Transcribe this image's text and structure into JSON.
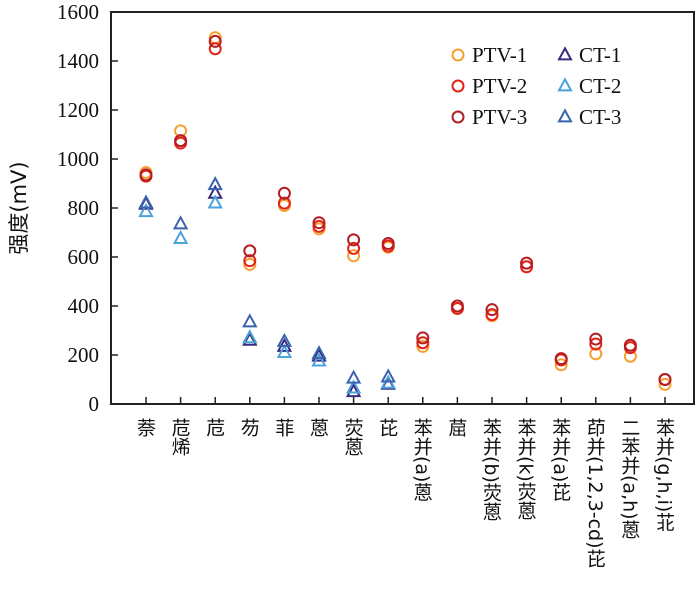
{
  "chart_data": {
    "type": "scatter",
    "title": "",
    "xlabel": "",
    "ylabel": "强度(mV)",
    "ylim": [
      0,
      1600
    ],
    "yticks": [
      0,
      200,
      400,
      600,
      800,
      1000,
      1200,
      1400,
      1600
    ],
    "grid": false,
    "legend_position": "top-right",
    "categories": [
      "萘",
      "苊烯",
      "苊",
      "芴",
      "菲",
      "蒽",
      "荧蒽",
      "芘",
      "苯并(a)蒽",
      "䓛",
      "苯并(b)荧蒽",
      "苯并(k)荧蒽",
      "苯并(a)芘",
      "茚并(1,2,3-cd)芘",
      "二苯并(a,h)蒽",
      "苯并(g,h,i)苝"
    ],
    "series": [
      {
        "name": "PTV-1",
        "marker": "circle",
        "color": "#F5A030",
        "values": [
          945,
          1115,
          1495,
          570,
          810,
          715,
          605,
          640,
          235,
          390,
          360,
          560,
          160,
          205,
          195,
          80
        ]
      },
      {
        "name": "PTV-2",
        "marker": "circle",
        "color": "#E2231A",
        "values": [
          930,
          1065,
          1450,
          585,
          820,
          725,
          635,
          645,
          250,
          390,
          365,
          560,
          180,
          245,
          230,
          100
        ]
      },
      {
        "name": "PTV-3",
        "marker": "circle",
        "color": "#B21E23",
        "values": [
          935,
          1075,
          1480,
          625,
          860,
          740,
          670,
          655,
          270,
          400,
          385,
          575,
          185,
          265,
          240,
          100
        ]
      },
      {
        "name": "CT-1",
        "marker": "triangle",
        "color": "#3B2A7E",
        "values": [
          815,
          null,
          860,
          260,
          235,
          195,
          50,
          80,
          null,
          null,
          null,
          null,
          null,
          null,
          null,
          null
        ]
      },
      {
        "name": "CT-2",
        "marker": "triangle",
        "color": "#4BA3DC",
        "values": [
          785,
          675,
          820,
          270,
          210,
          175,
          65,
          85,
          null,
          null,
          null,
          null,
          null,
          null,
          null,
          null
        ]
      },
      {
        "name": "CT-3",
        "marker": "triangle",
        "color": "#3A63AE",
        "values": [
          820,
          735,
          895,
          335,
          255,
          205,
          105,
          110,
          null,
          null,
          null,
          null,
          null,
          null,
          null,
          null
        ]
      }
    ]
  }
}
